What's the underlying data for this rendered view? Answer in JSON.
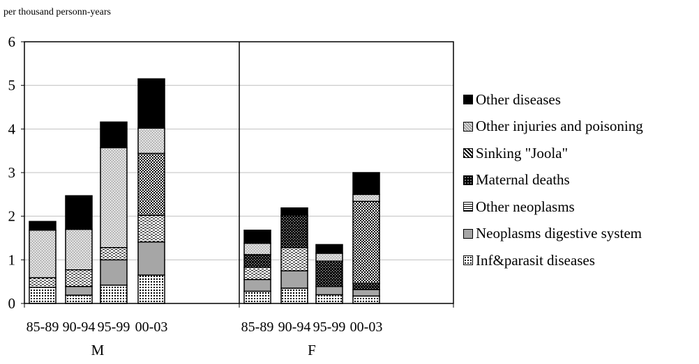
{
  "chart_data": {
    "type": "bar",
    "stacked": true,
    "y_unit_label": "per thousand personn-years",
    "ylim": [
      0,
      6
    ],
    "yticks": [
      0,
      1,
      2,
      3,
      4,
      5,
      6
    ],
    "grid": true,
    "legend_position": "right",
    "groups": [
      {
        "label": "M",
        "categories": [
          "85-89",
          "90-94",
          "95-99",
          "00-03"
        ]
      },
      {
        "label": "F",
        "categories": [
          "85-89",
          "90-94",
          "95-99",
          "00-03"
        ]
      }
    ],
    "series": [
      {
        "name": "Inf&parasit diseases",
        "fill": "dots",
        "values": [
          0.37,
          0.19,
          0.42,
          0.65,
          0.28,
          0.35,
          0.2,
          0.17
        ]
      },
      {
        "name": "Neoplasms digestive system",
        "fill": "#a6a6a6",
        "values": [
          0,
          0.2,
          0.58,
          0.76,
          0.27,
          0.4,
          0.19,
          0.15
        ]
      },
      {
        "name": "Other neoplasms",
        "fill": "dash",
        "values": [
          0.22,
          0.38,
          0.28,
          0.61,
          0.28,
          0.53,
          0,
          0
        ]
      },
      {
        "name": "Maternal deaths",
        "fill": "dark",
        "values": [
          0,
          0,
          0,
          0,
          0.29,
          0.74,
          0.58,
          0.14
        ]
      },
      {
        "name": "Sinking \"Joola\"",
        "fill": "check",
        "values": [
          0,
          0,
          0,
          1.42,
          0,
          0,
          0,
          1.88
        ]
      },
      {
        "name": "Other injuries and poisoning",
        "fill": "diag",
        "values": [
          1.09,
          0.93,
          2.29,
          0.58,
          0.26,
          0,
          0.18,
          0.16
        ]
      },
      {
        "name": "Other diseases",
        "fill": "#000000",
        "values": [
          0.2,
          0.77,
          0.59,
          1.13,
          0.3,
          0.17,
          0.2,
          0.5
        ]
      }
    ]
  }
}
